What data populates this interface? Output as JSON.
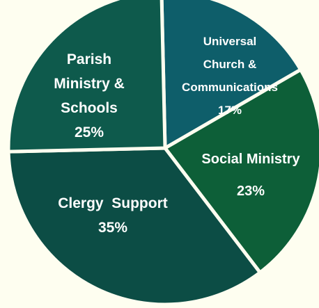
{
  "chart_data": {
    "type": "pie",
    "slices": [
      {
        "label_lines": [
          "Universal",
          "Church &",
          "Communications"
        ],
        "value": 17,
        "value_label": "17%",
        "color": "#0e5e6a"
      },
      {
        "label_lines": [
          "Social Ministry"
        ],
        "value": 23,
        "value_label": "23%",
        "color": "#0d5f38"
      },
      {
        "label_lines": [
          "Clergy  Support"
        ],
        "value": 35,
        "value_label": "35%",
        "color": "#0c4d45"
      },
      {
        "label_lines": [
          "Parish",
          "Ministry &",
          "Schools"
        ],
        "value": 25,
        "value_label": "25%",
        "color": "#0e5a4c"
      }
    ],
    "background": "#fefef0",
    "slice_border": "#fefef0"
  }
}
